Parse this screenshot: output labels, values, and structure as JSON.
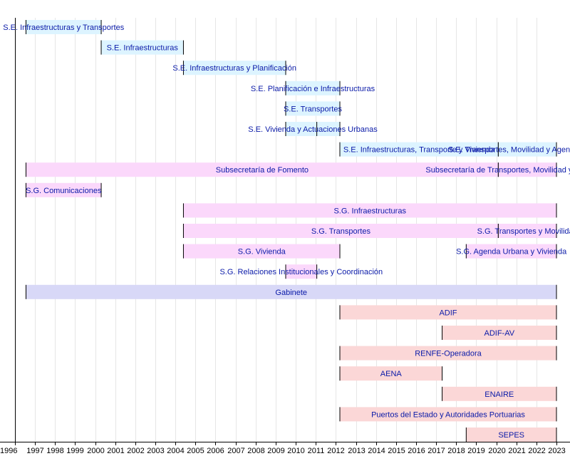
{
  "chart_data": {
    "type": "timeline",
    "x_axis": {
      "range": [
        1996,
        2023
      ],
      "tick_labels": [
        "1996",
        "1997",
        "1998",
        "1999",
        "2000",
        "2001",
        "2002",
        "2003",
        "2004",
        "2005",
        "2006",
        "2007",
        "2008",
        "2009",
        "2010",
        "2011",
        "2012",
        "2013",
        "2014",
        "2015",
        "2016",
        "2017",
        "2018",
        "2019",
        "2020",
        "2021",
        "2022",
        "2023"
      ],
      "grid": true
    },
    "category_colors": {
      "secretaria_estado": "#ddf4ff",
      "secretaria_general": "#fbd8fb",
      "gabinete": "#d8d8f7",
      "entidad": "#fbd7d7"
    },
    "rows": [
      {
        "segments": [
          {
            "label": "S.E. Infraestructuras y Transportes",
            "start": 1996.55,
            "end": 2000.3,
            "category": "secretaria_estado"
          }
        ]
      },
      {
        "segments": [
          {
            "label": "S.E. Infraestructuras",
            "start": 2000.3,
            "end": 2004.4,
            "category": "secretaria_estado"
          }
        ]
      },
      {
        "segments": [
          {
            "label": "S.E. Infraestructuras y Planificación",
            "start": 2004.4,
            "end": 2009.5,
            "category": "secretaria_estado"
          }
        ]
      },
      {
        "segments": [
          {
            "label": "S.E. Planificación e Infraestructuras",
            "start": 2009.5,
            "end": 2012.2,
            "category": "secretaria_estado"
          }
        ]
      },
      {
        "segments": [
          {
            "label": "S.E. Transportes",
            "start": 2009.5,
            "end": 2012.2,
            "category": "secretaria_estado"
          }
        ]
      },
      {
        "segments": [
          {
            "label": "S.E. Vivienda y Actuaciones Urbanas",
            "start": 2009.5,
            "end": 2012.2,
            "category": "secretaria_estado",
            "divider": 2011.05
          }
        ]
      },
      {
        "segments": [
          {
            "label": "S.E. Infraestructuras, Transporte y Vivienda",
            "start": 2012.2,
            "end": 2020.1,
            "category": "secretaria_estado"
          },
          {
            "label": "S.E. Transportes, Movilidad y Agenda Urbana",
            "start": 2020.1,
            "end": 2023.0,
            "category": "secretaria_estado"
          }
        ]
      },
      {
        "segments": [
          {
            "label": "Subsecretaría de Fomento",
            "start": 1996.55,
            "end": 2020.1,
            "category": "secretaria_general"
          },
          {
            "label": "Subsecretaría de Transportes, Movilidad y Agenda Urbana",
            "start": 2020.1,
            "end": 2023.0,
            "category": "secretaria_general"
          }
        ]
      },
      {
        "segments": [
          {
            "label": "S.G. Comunicaciones",
            "start": 1996.55,
            "end": 2000.3,
            "category": "secretaria_general"
          }
        ]
      },
      {
        "segments": [
          {
            "label": "S.G. Infraestructuras",
            "start": 2004.4,
            "end": 2023.0,
            "category": "secretaria_general"
          }
        ]
      },
      {
        "segments": [
          {
            "label": "S.G. Transportes",
            "start": 2004.4,
            "end": 2020.1,
            "category": "secretaria_general"
          },
          {
            "label": "S.G. Transportes y Movilidad",
            "start": 2020.1,
            "end": 2023.0,
            "category": "secretaria_general"
          }
        ]
      },
      {
        "segments": [
          {
            "label": "S.G. Vivienda",
            "start": 2004.4,
            "end": 2012.2,
            "category": "secretaria_general"
          },
          {
            "label": "S.G. Agenda Urbana y Vivienda",
            "start": 2018.5,
            "end": 2023.0,
            "category": "secretaria_general"
          }
        ]
      },
      {
        "segments": [
          {
            "label": "S.G. Relaciones Institucionales y Coordinación",
            "start": 2009.5,
            "end": 2011.05,
            "category": "secretaria_general"
          }
        ]
      },
      {
        "segments": [
          {
            "label": "Gabinete",
            "start": 1996.55,
            "end": 2023.0,
            "category": "gabinete"
          }
        ]
      },
      {
        "segments": [
          {
            "label": "ADIF",
            "start": 2012.2,
            "end": 2023.0,
            "category": "entidad"
          }
        ]
      },
      {
        "segments": [
          {
            "label": "ADIF-AV",
            "start": 2017.3,
            "end": 2023.0,
            "category": "entidad"
          }
        ]
      },
      {
        "segments": [
          {
            "label": "RENFE-Operadora",
            "start": 2012.2,
            "end": 2023.0,
            "category": "entidad"
          }
        ]
      },
      {
        "segments": [
          {
            "label": "AENA",
            "start": 2012.2,
            "end": 2017.3,
            "category": "entidad"
          }
        ]
      },
      {
        "segments": [
          {
            "label": "ENAIRE",
            "start": 2017.3,
            "end": 2023.0,
            "category": "entidad"
          }
        ]
      },
      {
        "segments": [
          {
            "label": "Puertos del Estado y Autoridades Portuarias",
            "start": 2012.2,
            "end": 2023.0,
            "category": "entidad"
          }
        ]
      },
      {
        "segments": [
          {
            "label": "SEPES",
            "start": 2018.5,
            "end": 2023.0,
            "category": "entidad"
          }
        ]
      }
    ]
  }
}
